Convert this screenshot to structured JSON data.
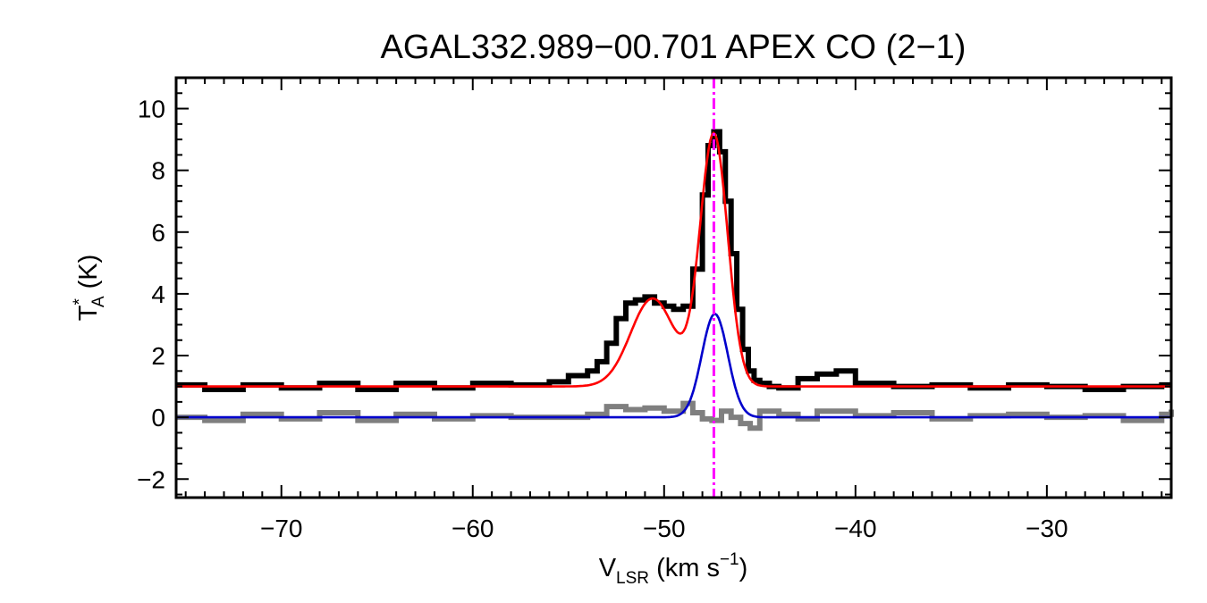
{
  "chart_data": {
    "type": "line",
    "title": "AGAL332.989−00.701   APEX CO (2−1)",
    "xlabel": {
      "main": "V",
      "sub": "LSR",
      "rest": " (km s",
      "sup": "−1",
      "close": ")"
    },
    "ylabel": {
      "main": "T",
      "sup": "*",
      "sub": "A",
      "rest": " (K)"
    },
    "xlim": [
      -75.5,
      -23.5
    ],
    "ylim": [
      -2.6,
      11.0
    ],
    "xticks": [
      -70,
      -60,
      -50,
      -40,
      -30
    ],
    "xtick_labels": [
      "−70",
      "−60",
      "−50",
      "−40",
      "−30"
    ],
    "yticks": [
      -2,
      0,
      2,
      4,
      6,
      8,
      10
    ],
    "ytick_labels": [
      "−2",
      "0",
      "2",
      "4",
      "6",
      "8",
      "10"
    ],
    "vline_x": -47.4,
    "grid": false,
    "legend": "none",
    "colors": {
      "observed": "#000000",
      "residual": "#7f7f7f",
      "total_fit": "#ff0000",
      "component_fit": "#0000cc",
      "vline": "#ff00ff"
    },
    "series": [
      {
        "key": "observed",
        "style": "step",
        "x": [
          -75.5,
          -74,
          -72,
          -70,
          -68,
          -66,
          -64,
          -62,
          -60,
          -58,
          -56,
          -55,
          -54,
          -53.5,
          -53,
          -52.5,
          -52,
          -51.5,
          -51,
          -50.5,
          -50,
          -49.5,
          -49,
          -48.5,
          -48,
          -47.7,
          -47.4,
          -47.1,
          -46.8,
          -46.5,
          -46.2,
          -45.9,
          -45.6,
          -45.3,
          -45,
          -44.5,
          -44,
          -43,
          -42,
          -41,
          -40,
          -38,
          -36,
          -34,
          -32,
          -30,
          -28,
          -26,
          -24,
          -23.5
        ],
        "y": [
          1.05,
          0.9,
          1.05,
          0.95,
          1.1,
          0.9,
          1.1,
          0.95,
          1.1,
          1.05,
          1.15,
          1.35,
          1.5,
          1.8,
          2.4,
          3.2,
          3.7,
          3.8,
          3.9,
          3.7,
          3.6,
          3.5,
          3.6,
          4.8,
          7.2,
          8.8,
          9.25,
          8.6,
          7.0,
          5.3,
          3.5,
          2.2,
          1.5,
          1.2,
          1.1,
          1.0,
          0.95,
          1.25,
          1.4,
          1.5,
          1.1,
          1.0,
          1.05,
          0.95,
          1.05,
          1.0,
          0.9,
          1.0,
          1.05,
          1.05
        ]
      },
      {
        "key": "residual",
        "style": "step",
        "x": [
          -75.5,
          -74,
          -72,
          -70,
          -68,
          -66,
          -64,
          -62,
          -60,
          -58,
          -56,
          -54,
          -53,
          -52,
          -51,
          -50,
          -49,
          -48.5,
          -48,
          -47.5,
          -47,
          -46.5,
          -46,
          -45.5,
          -45,
          -44,
          -43,
          -42,
          -40,
          -38,
          -36,
          -34,
          -32,
          -30,
          -28,
          -26,
          -24,
          -23.5
        ],
        "y": [
          0.0,
          -0.1,
          0.1,
          -0.05,
          0.15,
          -0.1,
          0.1,
          -0.05,
          0.05,
          0.0,
          0.0,
          0.1,
          0.35,
          0.25,
          0.3,
          0.2,
          0.45,
          0.15,
          -0.05,
          -0.1,
          0.2,
          0.0,
          -0.2,
          -0.35,
          0.2,
          0.1,
          -0.05,
          0.2,
          0.05,
          0.15,
          -0.05,
          0.05,
          0.1,
          0.0,
          0.05,
          -0.1,
          0.1,
          0.25
        ]
      },
      {
        "key": "total_fit",
        "style": "smooth",
        "baseline": 1.0,
        "components": [
          {
            "amp": 2.85,
            "center": -50.6,
            "sigma": 1.15
          },
          {
            "amp": 8.15,
            "center": -47.4,
            "sigma": 0.72
          }
        ]
      },
      {
        "key": "component_fit",
        "style": "smooth",
        "baseline": 0.0,
        "components": [
          {
            "amp": 3.35,
            "center": -47.35,
            "sigma": 0.68
          }
        ]
      }
    ]
  }
}
